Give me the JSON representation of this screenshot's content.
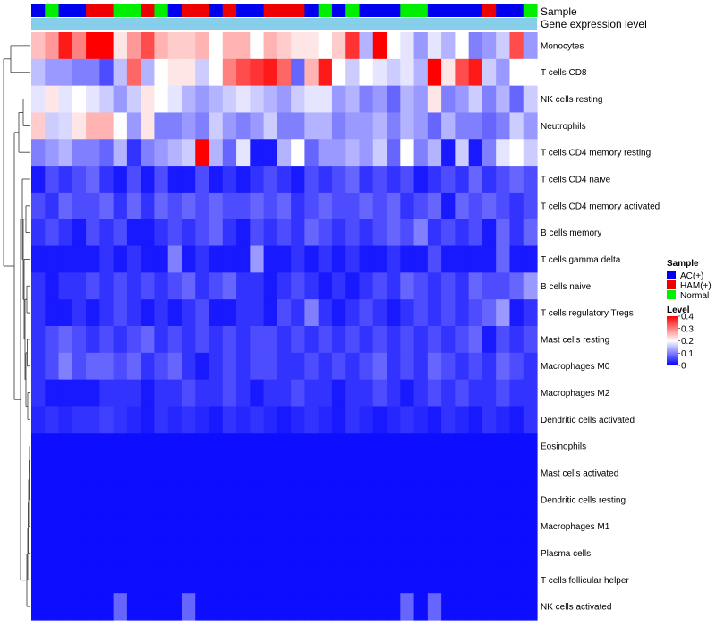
{
  "chart_data": {
    "type": "heatmap",
    "title": "",
    "annotations": {
      "sample_label": "Sample",
      "gene_expression_label": "Gene expression level",
      "sample_groups": [
        "AC(+)",
        "Normal",
        "AC(+)",
        "AC(+)",
        "HAM(+)",
        "HAM(+)",
        "Normal",
        "Normal",
        "HAM(+)",
        "Normal",
        "AC(+)",
        "HAM(+)",
        "HAM(+)",
        "AC(+)",
        "HAM(+)",
        "AC(+)",
        "AC(+)",
        "HAM(+)",
        "HAM(+)",
        "HAM(+)",
        "AC(+)",
        "Normal",
        "AC(+)",
        "Normal",
        "AC(+)",
        "AC(+)",
        "AC(+)",
        "Normal",
        "Normal",
        "AC(+)",
        "AC(+)",
        "AC(+)",
        "AC(+)",
        "HAM(+)",
        "AC(+)",
        "AC(+)",
        "Normal"
      ]
    },
    "rows": [
      "Monocytes",
      "T cells CD8",
      "NK cells resting",
      "Neutrophils",
      "T cells CD4 memory resting",
      "T cells CD4 naive",
      "T cells CD4 memory activated",
      "B cells memory",
      "T cells gamma delta",
      "B cells naive",
      "T cells regulatory  Tregs",
      "Mast cells resting",
      "Macrophages M0",
      "Macrophages M2",
      "Dendritic cells activated",
      "Eosinophils",
      "Mast cells activated",
      "Dendritic cells resting",
      "Macrophages M1",
      "Plasma cells",
      "T cells follicular helper",
      "NK cells activated"
    ],
    "values": [
      [
        0.25,
        0.28,
        0.38,
        0.3,
        0.4,
        0.4,
        0.22,
        0.28,
        0.34,
        0.26,
        0.24,
        0.24,
        0.26,
        0.2,
        0.26,
        0.26,
        0.2,
        0.26,
        0.24,
        0.22,
        0.22,
        0.2,
        0.24,
        0.36,
        0.14,
        0.4,
        0.2,
        0.18,
        0.12,
        0.18,
        0.14,
        0.2,
        0.1,
        0.12,
        0.16,
        0.34,
        0.12
      ],
      [
        0.15,
        0.12,
        0.12,
        0.1,
        0.1,
        0.06,
        0.15,
        0.32,
        0.14,
        0.2,
        0.22,
        0.22,
        0.16,
        0.2,
        0.3,
        0.34,
        0.36,
        0.38,
        0.32,
        0.08,
        0.26,
        0.38,
        0.2,
        0.16,
        0.2,
        0.18,
        0.16,
        0.18,
        0.14,
        0.4,
        0.22,
        0.34,
        0.38,
        0.16,
        0.12,
        0.2,
        0.2
      ],
      [
        0.18,
        0.22,
        0.18,
        0.2,
        0.18,
        0.16,
        0.12,
        0.16,
        0.22,
        0.2,
        0.18,
        0.14,
        0.12,
        0.14,
        0.16,
        0.18,
        0.16,
        0.14,
        0.12,
        0.16,
        0.18,
        0.18,
        0.12,
        0.14,
        0.1,
        0.12,
        0.08,
        0.14,
        0.12,
        0.22,
        0.1,
        0.12,
        0.16,
        0.1,
        0.14,
        0.08,
        0.16
      ],
      [
        0.24,
        0.16,
        0.17,
        0.22,
        0.26,
        0.26,
        0.2,
        0.12,
        0.22,
        0.1,
        0.1,
        0.12,
        0.1,
        0.16,
        0.12,
        0.1,
        0.12,
        0.16,
        0.1,
        0.1,
        0.14,
        0.14,
        0.1,
        0.12,
        0.12,
        0.14,
        0.1,
        0.14,
        0.12,
        0.08,
        0.14,
        0.1,
        0.1,
        0.08,
        0.1,
        0.16,
        0.12
      ],
      [
        0.1,
        0.12,
        0.14,
        0.1,
        0.1,
        0.08,
        0.14,
        0.04,
        0.1,
        0.12,
        0.14,
        0.16,
        0.4,
        0.14,
        0.08,
        0.18,
        0.02,
        0.02,
        0.14,
        0.2,
        0.08,
        0.12,
        0.12,
        0.14,
        0.12,
        0.16,
        0.08,
        0.2,
        0.1,
        0.14,
        0.02,
        0.16,
        0.02,
        0.1,
        0.18,
        0.2,
        0.16
      ],
      [
        0.02,
        0.06,
        0.04,
        0.06,
        0.08,
        0.04,
        0.02,
        0.06,
        0.02,
        0.06,
        0.02,
        0.02,
        0.06,
        0.02,
        0.04,
        0.02,
        0.04,
        0.06,
        0.04,
        0.02,
        0.06,
        0.04,
        0.06,
        0.08,
        0.04,
        0.06,
        0.04,
        0.06,
        0.02,
        0.04,
        0.06,
        0.04,
        0.08,
        0.04,
        0.06,
        0.08,
        0.06
      ],
      [
        0.06,
        0.04,
        0.08,
        0.06,
        0.06,
        0.08,
        0.04,
        0.08,
        0.04,
        0.08,
        0.06,
        0.08,
        0.06,
        0.08,
        0.06,
        0.06,
        0.08,
        0.06,
        0.08,
        0.04,
        0.06,
        0.08,
        0.06,
        0.06,
        0.08,
        0.06,
        0.08,
        0.04,
        0.06,
        0.08,
        0.02,
        0.08,
        0.06,
        0.08,
        0.06,
        0.04,
        0.06
      ],
      [
        0.04,
        0.06,
        0.04,
        0.02,
        0.06,
        0.04,
        0.06,
        0.02,
        0.02,
        0.04,
        0.06,
        0.04,
        0.06,
        0.08,
        0.04,
        0.02,
        0.06,
        0.04,
        0.06,
        0.04,
        0.08,
        0.06,
        0.04,
        0.06,
        0.04,
        0.06,
        0.08,
        0.06,
        0.1,
        0.04,
        0.06,
        0.04,
        0.06,
        0.02,
        0.08,
        0.04,
        0.08
      ],
      [
        0.02,
        0.02,
        0.02,
        0.02,
        0.02,
        0.04,
        0.02,
        0.04,
        0.02,
        0.02,
        0.1,
        0.02,
        0.04,
        0.02,
        0.02,
        0.02,
        0.12,
        0.02,
        0.02,
        0.04,
        0.02,
        0.04,
        0.02,
        0.04,
        0.02,
        0.02,
        0.04,
        0.02,
        0.02,
        0.06,
        0.02,
        0.02,
        0.02,
        0.02,
        0.08,
        0.02,
        0.02
      ],
      [
        0.04,
        0.02,
        0.04,
        0.04,
        0.06,
        0.04,
        0.06,
        0.04,
        0.06,
        0.04,
        0.06,
        0.08,
        0.04,
        0.06,
        0.08,
        0.04,
        0.04,
        0.02,
        0.04,
        0.06,
        0.04,
        0.02,
        0.04,
        0.02,
        0.04,
        0.06,
        0.04,
        0.08,
        0.06,
        0.04,
        0.06,
        0.04,
        0.08,
        0.06,
        0.06,
        0.08,
        0.12
      ],
      [
        0.04,
        0.02,
        0.02,
        0.04,
        0.02,
        0.04,
        0.06,
        0.04,
        0.02,
        0.04,
        0.02,
        0.04,
        0.06,
        0.02,
        0.02,
        0.04,
        0.04,
        0.02,
        0.06,
        0.04,
        0.1,
        0.04,
        0.02,
        0.04,
        0.06,
        0.04,
        0.02,
        0.04,
        0.06,
        0.04,
        0.06,
        0.04,
        0.06,
        0.08,
        0.12,
        0.02,
        0.04
      ],
      [
        0.04,
        0.06,
        0.08,
        0.06,
        0.04,
        0.06,
        0.04,
        0.06,
        0.08,
        0.04,
        0.06,
        0.04,
        0.06,
        0.04,
        0.06,
        0.04,
        0.06,
        0.06,
        0.04,
        0.06,
        0.04,
        0.06,
        0.04,
        0.06,
        0.04,
        0.06,
        0.04,
        0.06,
        0.04,
        0.06,
        0.04,
        0.06,
        0.08,
        0.02,
        0.06,
        0.04,
        0.06
      ],
      [
        0.04,
        0.06,
        0.1,
        0.06,
        0.08,
        0.08,
        0.06,
        0.08,
        0.04,
        0.06,
        0.08,
        0.04,
        0.02,
        0.04,
        0.06,
        0.04,
        0.06,
        0.06,
        0.04,
        0.04,
        0.06,
        0.04,
        0.06,
        0.04,
        0.06,
        0.08,
        0.04,
        0.06,
        0.04,
        0.08,
        0.06,
        0.04,
        0.06,
        0.04,
        0.08,
        0.06,
        0.04
      ],
      [
        0.04,
        0.02,
        0.02,
        0.02,
        0.02,
        0.04,
        0.04,
        0.04,
        0.02,
        0.04,
        0.04,
        0.06,
        0.04,
        0.04,
        0.06,
        0.04,
        0.02,
        0.04,
        0.04,
        0.06,
        0.04,
        0.04,
        0.02,
        0.04,
        0.04,
        0.06,
        0.04,
        0.02,
        0.04,
        0.06,
        0.04,
        0.06,
        0.04,
        0.04,
        0.06,
        0.04,
        0.04
      ],
      [
        0.03,
        0.04,
        0.03,
        0.04,
        0.04,
        0.05,
        0.04,
        0.03,
        0.02,
        0.04,
        0.03,
        0.04,
        0.03,
        0.02,
        0.04,
        0.03,
        0.04,
        0.03,
        0.02,
        0.03,
        0.04,
        0.03,
        0.02,
        0.04,
        0.03,
        0.02,
        0.03,
        0.04,
        0.03,
        0.02,
        0.04,
        0.03,
        0.02,
        0.04,
        0.03,
        0.02,
        0.04
      ],
      [
        0.01,
        0.01,
        0.01,
        0.01,
        0.01,
        0.01,
        0.01,
        0.01,
        0.01,
        0.01,
        0.01,
        0.01,
        0.01,
        0.01,
        0.01,
        0.01,
        0.01,
        0.01,
        0.01,
        0.01,
        0.01,
        0.01,
        0.01,
        0.01,
        0.01,
        0.01,
        0.01,
        0.01,
        0.01,
        0.01,
        0.01,
        0.01,
        0.01,
        0.01,
        0.01,
        0.01,
        0.01
      ],
      [
        0.01,
        0.01,
        0.01,
        0.01,
        0.01,
        0.01,
        0.01,
        0.01,
        0.01,
        0.01,
        0.01,
        0.01,
        0.01,
        0.01,
        0.01,
        0.01,
        0.01,
        0.01,
        0.01,
        0.01,
        0.01,
        0.01,
        0.01,
        0.01,
        0.01,
        0.01,
        0.01,
        0.01,
        0.01,
        0.01,
        0.01,
        0.01,
        0.01,
        0.01,
        0.01,
        0.01,
        0.01
      ],
      [
        0.01,
        0.01,
        0.01,
        0.01,
        0.01,
        0.01,
        0.01,
        0.01,
        0.01,
        0.01,
        0.01,
        0.01,
        0.01,
        0.01,
        0.01,
        0.01,
        0.01,
        0.01,
        0.01,
        0.01,
        0.01,
        0.01,
        0.01,
        0.01,
        0.01,
        0.01,
        0.01,
        0.01,
        0.01,
        0.01,
        0.01,
        0.01,
        0.01,
        0.01,
        0.01,
        0.01,
        0.01
      ],
      [
        0.01,
        0.01,
        0.01,
        0.01,
        0.01,
        0.01,
        0.01,
        0.01,
        0.01,
        0.01,
        0.01,
        0.01,
        0.01,
        0.01,
        0.01,
        0.01,
        0.01,
        0.01,
        0.01,
        0.01,
        0.01,
        0.01,
        0.01,
        0.01,
        0.01,
        0.01,
        0.01,
        0.01,
        0.01,
        0.01,
        0.01,
        0.01,
        0.01,
        0.01,
        0.01,
        0.01,
        0.01
      ],
      [
        0.01,
        0.01,
        0.01,
        0.01,
        0.01,
        0.01,
        0.01,
        0.01,
        0.01,
        0.01,
        0.01,
        0.01,
        0.01,
        0.01,
        0.01,
        0.01,
        0.01,
        0.01,
        0.01,
        0.01,
        0.01,
        0.01,
        0.01,
        0.01,
        0.01,
        0.01,
        0.01,
        0.01,
        0.01,
        0.01,
        0.01,
        0.01,
        0.01,
        0.01,
        0.01,
        0.01,
        0.01
      ],
      [
        0.01,
        0.01,
        0.01,
        0.01,
        0.01,
        0.01,
        0.01,
        0.01,
        0.01,
        0.01,
        0.01,
        0.01,
        0.01,
        0.01,
        0.01,
        0.01,
        0.01,
        0.01,
        0.01,
        0.01,
        0.01,
        0.01,
        0.01,
        0.01,
        0.01,
        0.01,
        0.01,
        0.01,
        0.01,
        0.01,
        0.01,
        0.01,
        0.01,
        0.01,
        0.01,
        0.01,
        0.01
      ],
      [
        0.01,
        0.01,
        0.01,
        0.01,
        0.01,
        0.01,
        0.08,
        0.01,
        0.01,
        0.01,
        0.01,
        0.08,
        0.01,
        0.01,
        0.01,
        0.01,
        0.01,
        0.01,
        0.01,
        0.01,
        0.01,
        0.01,
        0.01,
        0.01,
        0.01,
        0.01,
        0.01,
        0.08,
        0.01,
        0.08,
        0.01,
        0.01,
        0.01,
        0.01,
        0.01,
        0.01,
        0.01
      ]
    ],
    "legend": {
      "sample": {
        "title": "Sample",
        "entries": [
          {
            "label": "AC(+)",
            "color": "#0000ee"
          },
          {
            "label": "HAM(+)",
            "color": "#ee0000"
          },
          {
            "label": "Normal",
            "color": "#00ee00"
          }
        ]
      },
      "level": {
        "title": "Level",
        "ticks": [
          "0.4",
          "0.3",
          "0.2",
          "0.1",
          "0"
        ],
        "tick_values": [
          0.4,
          0.3,
          0.2,
          0.1,
          0
        ],
        "range": [
          0,
          0.4
        ],
        "colors": {
          "low": "#0000ff",
          "mid": "#ffffff",
          "high": "#ff0000"
        }
      },
      "placement": "right"
    },
    "colors": {
      "gene_expression_bar": "#87ceeb"
    }
  }
}
